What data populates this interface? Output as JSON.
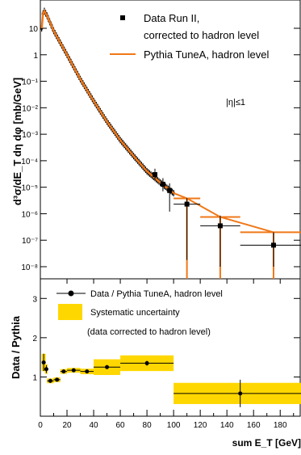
{
  "chart_data": [
    {
      "type": "scatter",
      "panel": "top",
      "scale": "log",
      "ylabel": "d³σ/dE_T dη dφ  [mb/GeV]",
      "ylim": [
        1e-08,
        5e-05
      ],
      "xlim": [
        0,
        195
      ],
      "yticks": [
        {
          "value": 1e-08,
          "label": "10⁻⁸"
        },
        {
          "value": 1e-07,
          "label": "10⁻⁷"
        },
        {
          "value": 1e-06,
          "label": "10⁻⁶"
        },
        {
          "value": 1e-05,
          "label": "10⁻⁵"
        },
        {
          "value": 0.0001,
          "label": "10⁻⁴"
        },
        {
          "value": 0.001,
          "label": "10⁻³"
        },
        {
          "value": 0.01,
          "label": "10⁻²"
        },
        {
          "value": 0.1,
          "label": "10⁻¹"
        },
        {
          "value": 1,
          "label": "1"
        },
        {
          "value": 10,
          "label": "10"
        }
      ],
      "annotation": "|η|≤1",
      "legend": [
        {
          "label_line1": "Data Run II,",
          "label_line2": "corrected to hadron level",
          "marker": "square",
          "color": "#000000"
        },
        {
          "label_line1": "Pythia TuneA, hadron level",
          "label_line2": "",
          "marker": "line",
          "color": "#f07818"
        }
      ],
      "data_points": [
        {
          "x": 110,
          "xerr": 10,
          "y": 2.3e-06,
          "ylo": 1.8e-08,
          "yhi": 3.9e-06
        },
        {
          "x": 135,
          "xerr": 15,
          "y": 3.5e-07,
          "ylo": 1e-08,
          "yhi": 8.5e-07
        },
        {
          "x": 175,
          "xerr": 25,
          "y": 6.5e-08,
          "ylo": 1e-08,
          "yhi": 2e-07
        }
      ],
      "pythia_points": [
        {
          "x": 110,
          "xerr": 10,
          "y": 3.8e-06
        },
        {
          "x": 135,
          "xerr": 15,
          "y": 7.5e-07
        },
        {
          "x": 175,
          "xerr": 25,
          "y": 2e-07
        }
      ],
      "curve": [
        {
          "x": 1,
          "y": 10
        },
        {
          "x": 2,
          "y": 35
        },
        {
          "x": 3,
          "y": 45
        },
        {
          "x": 5,
          "y": 30
        },
        {
          "x": 10,
          "y": 8
        },
        {
          "x": 20,
          "y": 1.0
        },
        {
          "x": 30,
          "y": 0.12
        },
        {
          "x": 40,
          "y": 0.018
        },
        {
          "x": 50,
          "y": 0.003
        },
        {
          "x": 60,
          "y": 0.0006
        },
        {
          "x": 70,
          "y": 0.00015
        },
        {
          "x": 80,
          "y": 4e-05
        },
        {
          "x": 90,
          "y": 1.5e-05
        },
        {
          "x": 100,
          "y": 6e-06
        }
      ],
      "error_band_points": [
        {
          "x": 86,
          "y": 3e-05,
          "ylo": 1.8e-05,
          "yhi": 5e-05
        },
        {
          "x": 92,
          "y": 1.3e-05,
          "ylo": 7e-06,
          "yhi": 2.2e-05
        },
        {
          "x": 97,
          "y": 7.5e-06,
          "ylo": 1.2e-06,
          "yhi": 1.4e-05
        }
      ]
    },
    {
      "type": "scatter",
      "panel": "bottom",
      "ylabel": "Data / Pythia",
      "xlabel": "sum E_T  [GeV]",
      "xlim": [
        0,
        195
      ],
      "ylim": [
        0,
        3.5
      ],
      "xticks": [
        0,
        20,
        40,
        60,
        80,
        100,
        120,
        140,
        160,
        180
      ],
      "yticks": [
        1,
        2,
        3
      ],
      "legend": [
        {
          "label": "Data / Pythia TuneA, hadron level",
          "marker": "circle",
          "color": "#000000"
        },
        {
          "label": "Systematic uncertainty",
          "marker": "box",
          "color": "#ffd700"
        }
      ],
      "note": "(data corrected to hadron level)",
      "points": [
        {
          "x": 2.5,
          "xerr": 1.5,
          "y": 1.37,
          "yerr": 0.22,
          "syst": 0.22
        },
        {
          "x": 4.5,
          "xerr": 1.0,
          "y": 1.2,
          "yerr": 0.1,
          "syst": 0.12
        },
        {
          "x": 7.5,
          "xerr": 2.5,
          "y": 0.9,
          "yerr": 0.05,
          "syst": 0.06
        },
        {
          "x": 12.5,
          "xerr": 2.5,
          "y": 0.93,
          "yerr": 0.04,
          "syst": 0.06
        },
        {
          "x": 17.5,
          "xerr": 2.5,
          "y": 1.14,
          "yerr": 0.04,
          "syst": 0.06
        },
        {
          "x": 25,
          "xerr": 5,
          "y": 1.17,
          "yerr": 0.04,
          "syst": 0.06
        },
        {
          "x": 35,
          "xerr": 5,
          "y": 1.14,
          "yerr": 0.04,
          "syst": 0.07
        },
        {
          "x": 50,
          "xerr": 10,
          "y": 1.25,
          "yerr": 0.05,
          "syst": 0.2
        },
        {
          "x": 80,
          "xerr": 20,
          "y": 1.35,
          "yerr": 0.06,
          "syst": 0.2
        },
        {
          "x": 150,
          "xerr": 50,
          "y": 0.58,
          "yerr": 0.35,
          "syst": 0.27
        }
      ]
    }
  ],
  "colors": {
    "pythia": "#f07818",
    "systematic": "#ffd700",
    "data": "#000000"
  }
}
